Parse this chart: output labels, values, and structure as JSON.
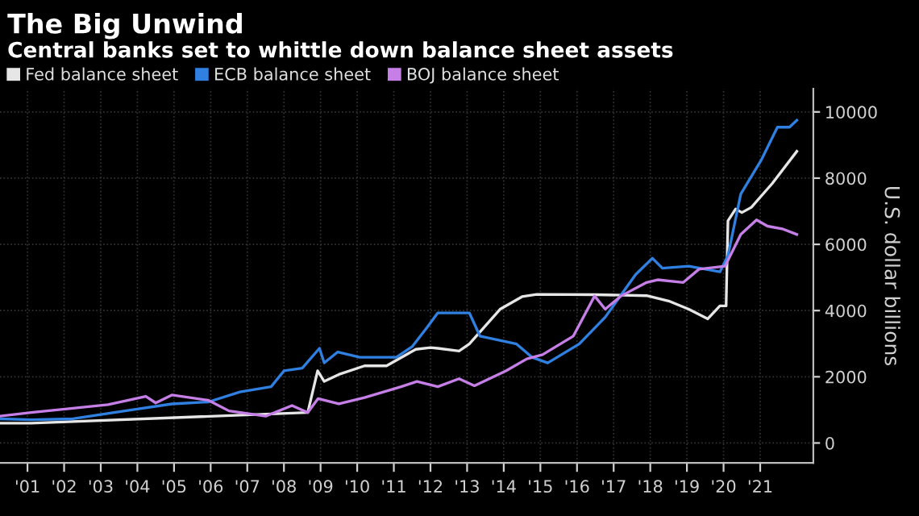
{
  "chart_data": {
    "type": "line",
    "title": "The Big Unwind",
    "subtitle": "Central banks set to whittle down balance sheet assets",
    "ylabel": "U.S. dollar billions",
    "xlim": [
      2000.25,
      2022.45
    ],
    "ylim": [
      -600,
      10700
    ],
    "yticks": [
      0,
      2000,
      4000,
      6000,
      8000,
      10000
    ],
    "xticks": [
      {
        "value": 2001,
        "label": "'01"
      },
      {
        "value": 2002,
        "label": "'02"
      },
      {
        "value": 2003,
        "label": "'03"
      },
      {
        "value": 2004,
        "label": "'04"
      },
      {
        "value": 2005,
        "label": "'05"
      },
      {
        "value": 2006,
        "label": "'06"
      },
      {
        "value": 2007,
        "label": "'07"
      },
      {
        "value": 2008,
        "label": "'08"
      },
      {
        "value": 2009,
        "label": "'09"
      },
      {
        "value": 2010,
        "label": "'10"
      },
      {
        "value": 2011,
        "label": "'11"
      },
      {
        "value": 2012,
        "label": "'12"
      },
      {
        "value": 2013,
        "label": "'13"
      },
      {
        "value": 2014,
        "label": "'14"
      },
      {
        "value": 2015,
        "label": "'15"
      },
      {
        "value": 2016,
        "label": "'16"
      },
      {
        "value": 2017,
        "label": "'17"
      },
      {
        "value": 2018,
        "label": "'18"
      },
      {
        "value": 2019,
        "label": "'19"
      },
      {
        "value": 2020,
        "label": "'20"
      },
      {
        "value": 2021,
        "label": "'21"
      }
    ],
    "grid": true,
    "legend": "top left",
    "marker": "none",
    "line_style": "solid",
    "series": [
      {
        "name": "Fed balance sheet",
        "color": "#e6e6e6",
        "x": [
          2000.25,
          2001.1,
          2008.65,
          2008.92,
          2009.1,
          2009.5,
          2010.2,
          2010.8,
          2011.6,
          2012.0,
          2012.2,
          2012.78,
          2013.06,
          2013.9,
          2014.5,
          2014.9,
          2016.5,
          2017.9,
          2018.5,
          2019.05,
          2019.57,
          2019.9,
          2020.07,
          2020.12,
          2020.33,
          2020.5,
          2020.76,
          2021.33,
          2022.0
        ],
        "values": [
          600,
          600,
          920,
          2180,
          1860,
          2070,
          2330,
          2330,
          2830,
          2880,
          2860,
          2780,
          2990,
          4040,
          4420,
          4490,
          4480,
          4450,
          4290,
          4040,
          3750,
          4140,
          4140,
          6710,
          7070,
          6960,
          7120,
          7840,
          8810
        ]
      },
      {
        "name": "ECB balance sheet",
        "color": "#2f80e0",
        "x": [
          2000.25,
          2001.1,
          2002.24,
          2003.66,
          2004.94,
          2005.94,
          2006.8,
          2007.65,
          2008.0,
          2008.5,
          2008.97,
          2009.1,
          2009.47,
          2010.07,
          2011.07,
          2011.5,
          2011.9,
          2012.2,
          2013.06,
          2013.35,
          2014.35,
          2014.77,
          2015.2,
          2016.06,
          2016.77,
          2017.6,
          2018.06,
          2018.33,
          2019.05,
          2019.9,
          2020.12,
          2020.47,
          2021.04,
          2021.47,
          2021.8,
          2022.0
        ],
        "values": [
          730,
          700,
          730,
          970,
          1180,
          1240,
          1540,
          1700,
          2180,
          2260,
          2860,
          2420,
          2750,
          2590,
          2590,
          2910,
          3480,
          3930,
          3930,
          3230,
          2990,
          2590,
          2420,
          2990,
          3800,
          5090,
          5580,
          5280,
          5340,
          5170,
          5660,
          7520,
          8570,
          9540,
          9540,
          9750
        ]
      },
      {
        "name": "BOJ balance sheet",
        "color": "#c77fe8",
        "x": [
          2000.25,
          2001.1,
          2002.24,
          2003.2,
          2004.23,
          2004.5,
          2004.94,
          2005.94,
          2006.5,
          2007.5,
          2008.22,
          2008.65,
          2008.93,
          2009.5,
          2010.2,
          2011.2,
          2011.63,
          2012.2,
          2012.78,
          2013.2,
          2014.06,
          2014.63,
          2015.06,
          2015.9,
          2016.48,
          2016.77,
          2017.2,
          2017.9,
          2018.2,
          2018.9,
          2019.33,
          2020.04,
          2020.47,
          2020.9,
          2021.2,
          2021.6,
          2022.0
        ],
        "values": [
          810,
          920,
          1050,
          1160,
          1410,
          1210,
          1450,
          1290,
          970,
          810,
          1130,
          920,
          1340,
          1180,
          1370,
          1700,
          1860,
          1700,
          1940,
          1730,
          2180,
          2540,
          2670,
          3230,
          4440,
          4040,
          4440,
          4850,
          4930,
          4850,
          5250,
          5340,
          6300,
          6740,
          6550,
          6470,
          6300
        ]
      }
    ]
  }
}
